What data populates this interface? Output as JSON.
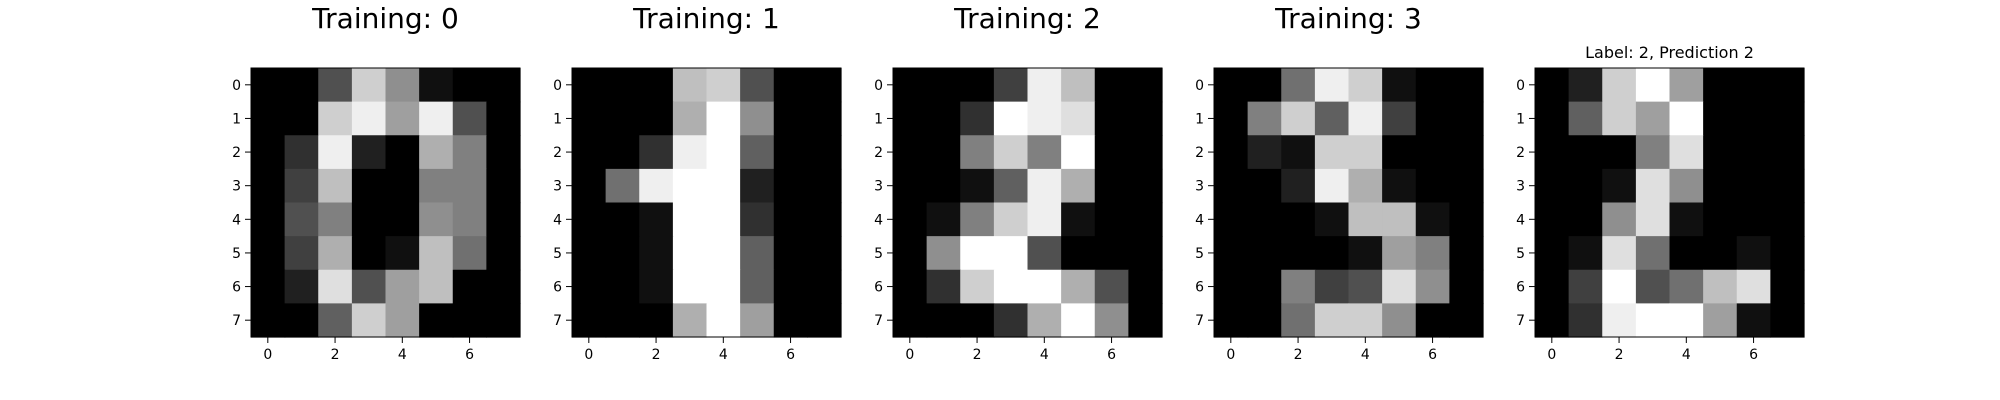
{
  "chart_data": [
    {
      "type": "heatmap",
      "title": "Training: 0",
      "colormap": "gray",
      "value_range": [
        0,
        16
      ],
      "x_ticks": [
        0,
        2,
        4,
        6
      ],
      "y_ticks": [
        0,
        1,
        2,
        3,
        4,
        5,
        6,
        7
      ],
      "x_tick_labels": [
        "0",
        "2",
        "4",
        "6"
      ],
      "y_tick_labels": [
        "0",
        "1",
        "2",
        "3",
        "4",
        "5",
        "6",
        "7"
      ],
      "values": [
        [
          0,
          0,
          5,
          13,
          9,
          1,
          0,
          0
        ],
        [
          0,
          0,
          13,
          15,
          10,
          15,
          5,
          0
        ],
        [
          0,
          3,
          15,
          2,
          0,
          11,
          8,
          0
        ],
        [
          0,
          4,
          12,
          0,
          0,
          8,
          8,
          0
        ],
        [
          0,
          5,
          8,
          0,
          0,
          9,
          8,
          0
        ],
        [
          0,
          4,
          11,
          0,
          1,
          12,
          7,
          0
        ],
        [
          0,
          2,
          14,
          5,
          10,
          12,
          0,
          0
        ],
        [
          0,
          0,
          6,
          13,
          10,
          0,
          0,
          0
        ]
      ]
    },
    {
      "type": "heatmap",
      "title": "Training: 1",
      "colormap": "gray",
      "value_range": [
        0,
        16
      ],
      "x_ticks": [
        0,
        2,
        4,
        6
      ],
      "y_ticks": [
        0,
        1,
        2,
        3,
        4,
        5,
        6,
        7
      ],
      "x_tick_labels": [
        "0",
        "2",
        "4",
        "6"
      ],
      "y_tick_labels": [
        "0",
        "1",
        "2",
        "3",
        "4",
        "5",
        "6",
        "7"
      ],
      "values": [
        [
          0,
          0,
          0,
          12,
          13,
          5,
          0,
          0
        ],
        [
          0,
          0,
          0,
          11,
          16,
          9,
          0,
          0
        ],
        [
          0,
          0,
          3,
          15,
          16,
          6,
          0,
          0
        ],
        [
          0,
          7,
          15,
          16,
          16,
          2,
          0,
          0
        ],
        [
          0,
          0,
          1,
          16,
          16,
          3,
          0,
          0
        ],
        [
          0,
          0,
          1,
          16,
          16,
          6,
          0,
          0
        ],
        [
          0,
          0,
          1,
          16,
          16,
          6,
          0,
          0
        ],
        [
          0,
          0,
          0,
          11,
          16,
          10,
          0,
          0
        ]
      ]
    },
    {
      "type": "heatmap",
      "title": "Training: 2",
      "colormap": "gray",
      "value_range": [
        0,
        16
      ],
      "x_ticks": [
        0,
        2,
        4,
        6
      ],
      "y_ticks": [
        0,
        1,
        2,
        3,
        4,
        5,
        6,
        7
      ],
      "x_tick_labels": [
        "0",
        "2",
        "4",
        "6"
      ],
      "y_tick_labels": [
        "0",
        "1",
        "2",
        "3",
        "4",
        "5",
        "6",
        "7"
      ],
      "values": [
        [
          0,
          0,
          0,
          4,
          15,
          12,
          0,
          0
        ],
        [
          0,
          0,
          3,
          16,
          15,
          14,
          0,
          0
        ],
        [
          0,
          0,
          8,
          13,
          8,
          16,
          0,
          0
        ],
        [
          0,
          0,
          1,
          6,
          15,
          11,
          0,
          0
        ],
        [
          0,
          1,
          8,
          13,
          15,
          1,
          0,
          0
        ],
        [
          0,
          9,
          16,
          16,
          5,
          0,
          0,
          0
        ],
        [
          0,
          3,
          13,
          16,
          16,
          11,
          5,
          0
        ],
        [
          0,
          0,
          0,
          3,
          11,
          16,
          9,
          0
        ]
      ]
    },
    {
      "type": "heatmap",
      "title": "Training: 3",
      "colormap": "gray",
      "value_range": [
        0,
        16
      ],
      "x_ticks": [
        0,
        2,
        4,
        6
      ],
      "y_ticks": [
        0,
        1,
        2,
        3,
        4,
        5,
        6,
        7
      ],
      "x_tick_labels": [
        "0",
        "2",
        "4",
        "6"
      ],
      "y_tick_labels": [
        "0",
        "1",
        "2",
        "3",
        "4",
        "5",
        "6",
        "7"
      ],
      "values": [
        [
          0,
          0,
          7,
          15,
          13,
          1,
          0,
          0
        ],
        [
          0,
          8,
          13,
          6,
          15,
          4,
          0,
          0
        ],
        [
          0,
          2,
          1,
          13,
          13,
          0,
          0,
          0
        ],
        [
          0,
          0,
          2,
          15,
          11,
          1,
          0,
          0
        ],
        [
          0,
          0,
          0,
          1,
          12,
          12,
          1,
          0
        ],
        [
          0,
          0,
          0,
          0,
          1,
          10,
          8,
          0
        ],
        [
          0,
          0,
          8,
          4,
          5,
          14,
          9,
          0
        ],
        [
          0,
          0,
          7,
          13,
          13,
          9,
          0,
          0
        ]
      ]
    },
    {
      "type": "heatmap",
      "title": "Label: 2, Prediction 2",
      "colormap": "gray",
      "value_range": [
        0,
        16
      ],
      "x_ticks": [
        0,
        2,
        4,
        6
      ],
      "y_ticks": [
        0,
        1,
        2,
        3,
        4,
        5,
        6,
        7
      ],
      "x_tick_labels": [
        "0",
        "2",
        "4",
        "6"
      ],
      "y_tick_labels": [
        "0",
        "1",
        "2",
        "3",
        "4",
        "5",
        "6",
        "7"
      ],
      "values": [
        [
          0,
          2,
          13,
          16,
          10,
          0,
          0,
          0
        ],
        [
          0,
          6,
          13,
          10,
          16,
          0,
          0,
          0
        ],
        [
          0,
          0,
          0,
          8,
          14,
          0,
          0,
          0
        ],
        [
          0,
          0,
          1,
          14,
          9,
          0,
          0,
          0
        ],
        [
          0,
          0,
          9,
          14,
          1,
          0,
          0,
          0
        ],
        [
          0,
          1,
          14,
          7,
          0,
          0,
          1,
          0
        ],
        [
          0,
          4,
          16,
          5,
          7,
          12,
          14,
          0
        ],
        [
          0,
          3,
          15,
          16,
          16,
          10,
          1,
          0
        ]
      ]
    }
  ]
}
